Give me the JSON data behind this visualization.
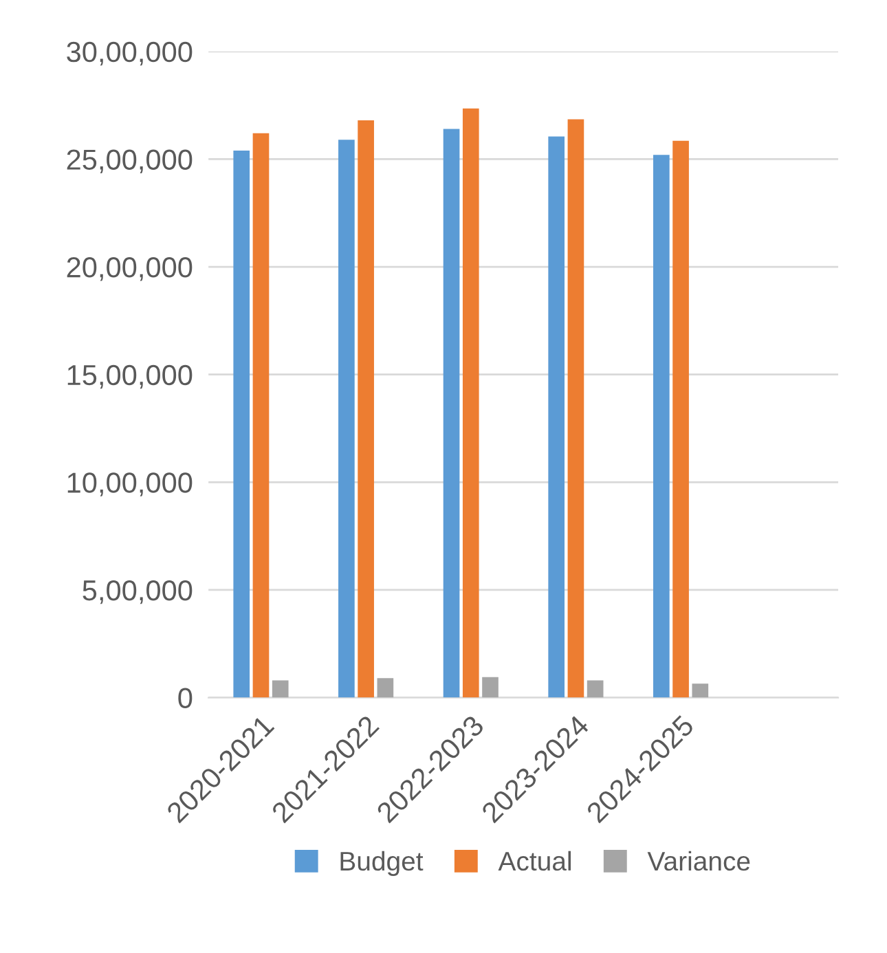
{
  "chart_data": {
    "type": "bar",
    "categories": [
      "2020-2021",
      "2021-2022",
      "2022-2023",
      "2023-2024",
      "2024-2025",
      null
    ],
    "series": [
      {
        "name": "Budget",
        "color": "#5b9bd5",
        "values": [
          2540000,
          2590000,
          2640000,
          2605000,
          2520000,
          null
        ]
      },
      {
        "name": "Actual",
        "color": "#ed7d31",
        "values": [
          2620000,
          2680000,
          2735000,
          2685000,
          2585000,
          null
        ]
      },
      {
        "name": "Variance",
        "color": "#a5a5a5",
        "values": [
          80000,
          90000,
          95000,
          80000,
          65000,
          null
        ]
      }
    ],
    "ylim": [
      0,
      3000000
    ],
    "yticks": [
      {
        "value": 0,
        "label": "0"
      },
      {
        "value": 500000,
        "label": "5,00,000"
      },
      {
        "value": 1000000,
        "label": "10,00,000"
      },
      {
        "value": 1500000,
        "label": "15,00,000"
      },
      {
        "value": 2000000,
        "label": "20,00,000"
      },
      {
        "value": 2500000,
        "label": "25,00,000"
      },
      {
        "value": 3000000,
        "label": "30,00,000"
      }
    ],
    "grid": "y",
    "legend": "bottom"
  }
}
